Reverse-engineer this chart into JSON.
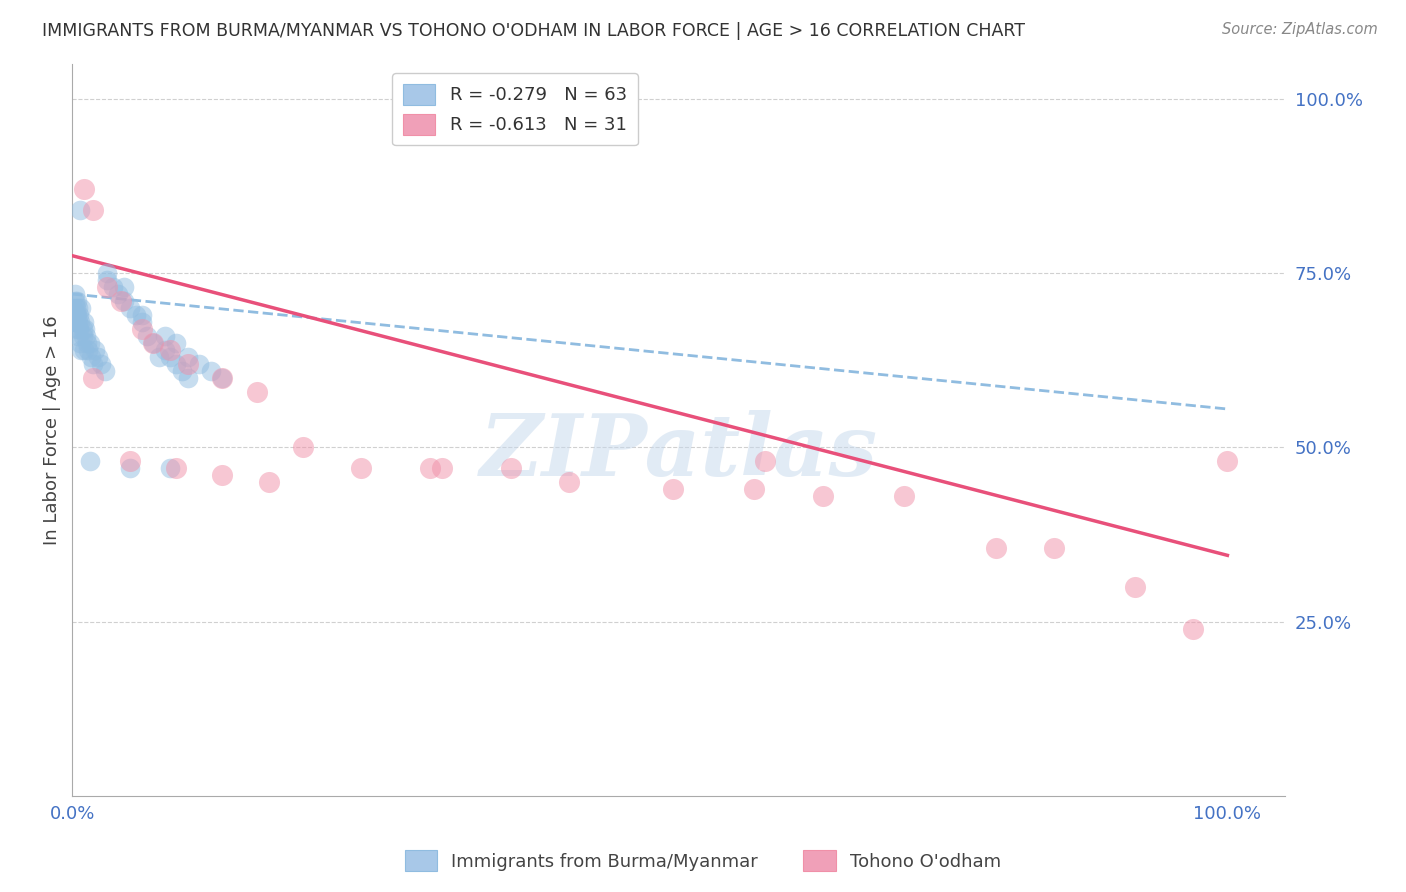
{
  "title": "IMMIGRANTS FROM BURMA/MYANMAR VS TOHONO O'ODHAM IN LABOR FORCE | AGE > 16 CORRELATION CHART",
  "source": "Source: ZipAtlas.com",
  "ylabel": "In Labor Force | Age > 16",
  "x_lim": [
    0.0,
    1.05
  ],
  "y_lim": [
    0.0,
    1.05
  ],
  "y_ticks": [
    0.25,
    0.5,
    0.75,
    1.0
  ],
  "y_tick_labels": [
    "25.0%",
    "50.0%",
    "75.0%",
    "100.0%"
  ],
  "x_ticks": [
    0.0,
    1.0
  ],
  "x_tick_labels": [
    "0.0%",
    "100.0%"
  ],
  "watermark_text": "ZIPatlas",
  "blue_dot_color": "#90bce0",
  "pink_dot_color": "#f090a8",
  "blue_line_color": "#4472c4",
  "pink_line_color": "#e8507a",
  "blue_dash_color": "#90bce0",
  "grid_color": "#d0d0d0",
  "axis_color": "#4472c4",
  "title_color": "#333333",
  "source_color": "#888888",
  "background_color": "#ffffff",
  "blue_line_x": [
    0.0,
    1.0
  ],
  "blue_line_y": [
    0.72,
    0.555
  ],
  "pink_line_x": [
    0.0,
    1.0
  ],
  "pink_line_y": [
    0.775,
    0.345
  ],
  "blue_scatter_x": [
    0.001,
    0.001,
    0.002,
    0.002,
    0.002,
    0.003,
    0.003,
    0.003,
    0.004,
    0.004,
    0.004,
    0.005,
    0.005,
    0.005,
    0.006,
    0.006,
    0.007,
    0.007,
    0.008,
    0.008,
    0.009,
    0.009,
    0.01,
    0.01,
    0.011,
    0.012,
    0.013,
    0.014,
    0.015,
    0.016,
    0.018,
    0.02,
    0.022,
    0.025,
    0.028,
    0.03,
    0.035,
    0.04,
    0.045,
    0.05,
    0.055,
    0.06,
    0.065,
    0.07,
    0.075,
    0.08,
    0.085,
    0.09,
    0.095,
    0.1,
    0.007,
    0.03,
    0.045,
    0.06,
    0.08,
    0.09,
    0.1,
    0.11,
    0.12,
    0.13,
    0.015,
    0.05,
    0.085
  ],
  "blue_scatter_y": [
    0.7,
    0.69,
    0.71,
    0.68,
    0.72,
    0.69,
    0.7,
    0.68,
    0.71,
    0.67,
    0.69,
    0.7,
    0.68,
    0.66,
    0.69,
    0.67,
    0.68,
    0.65,
    0.7,
    0.64,
    0.67,
    0.66,
    0.68,
    0.64,
    0.67,
    0.66,
    0.65,
    0.64,
    0.65,
    0.63,
    0.62,
    0.64,
    0.63,
    0.62,
    0.61,
    0.74,
    0.73,
    0.72,
    0.71,
    0.7,
    0.69,
    0.68,
    0.66,
    0.65,
    0.63,
    0.64,
    0.63,
    0.62,
    0.61,
    0.6,
    0.84,
    0.75,
    0.73,
    0.69,
    0.66,
    0.65,
    0.63,
    0.62,
    0.61,
    0.6,
    0.48,
    0.47,
    0.47
  ],
  "pink_scatter_x": [
    0.01,
    0.018,
    0.03,
    0.042,
    0.06,
    0.07,
    0.085,
    0.1,
    0.13,
    0.16,
    0.2,
    0.25,
    0.31,
    0.38,
    0.43,
    0.52,
    0.59,
    0.65,
    0.72,
    0.8,
    0.85,
    0.92,
    0.97,
    1.0,
    0.05,
    0.09,
    0.13,
    0.17,
    0.32,
    0.6,
    0.018
  ],
  "pink_scatter_y": [
    0.87,
    0.84,
    0.73,
    0.71,
    0.67,
    0.65,
    0.64,
    0.62,
    0.6,
    0.58,
    0.5,
    0.47,
    0.47,
    0.47,
    0.45,
    0.44,
    0.44,
    0.43,
    0.43,
    0.355,
    0.355,
    0.3,
    0.24,
    0.48,
    0.48,
    0.47,
    0.46,
    0.45,
    0.47,
    0.48,
    0.6
  ],
  "legend1_label": "R = -0.279   N = 63",
  "legend2_label": "R = -0.613   N = 31",
  "legend1_color": "#a8c8e8",
  "legend2_color": "#f0a0b8",
  "bottom_legend1": "Immigrants from Burma/Myanmar",
  "bottom_legend2": "Tohono O'odham"
}
